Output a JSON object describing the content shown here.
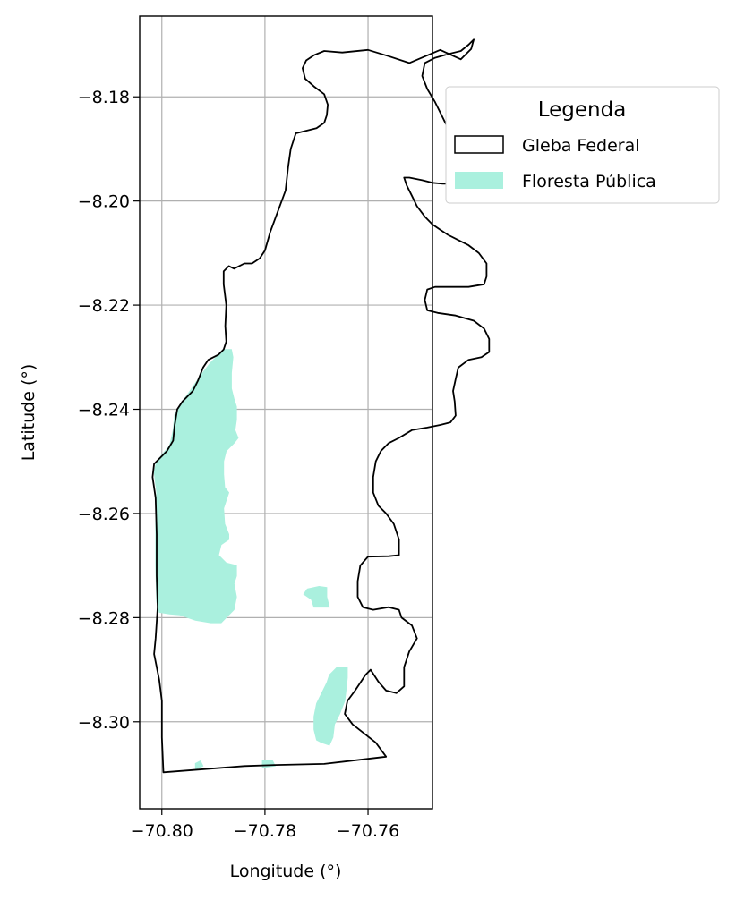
{
  "chart_data": {
    "type": "map",
    "xlabel": "Longitude (°)",
    "ylabel": "Latitude (°)",
    "xlim": [
      -70.8043,
      -70.7475
    ],
    "ylim": [
      -8.3167,
      -8.1645
    ],
    "xticks": [
      -70.8,
      -70.78,
      -70.76
    ],
    "xtick_labels": [
      "−70.80",
      "−70.78",
      "−70.76"
    ],
    "yticks": [
      -8.18,
      -8.2,
      -8.22,
      -8.24,
      -8.26,
      -8.28,
      -8.3
    ],
    "ytick_labels": [
      "−8.18",
      "−8.20",
      "−8.22",
      "−8.24",
      "−8.26",
      "−8.28",
      "−8.30"
    ],
    "grid": true,
    "legend": {
      "title": "Legenda",
      "placement": "outside-upper-right",
      "entries": [
        {
          "label": "Gleba Federal",
          "style": "outline",
          "edgecolor": "#000000",
          "facecolor": "none"
        },
        {
          "label": "Floresta Pública",
          "style": "fill",
          "facecolor": "#aaf0de"
        }
      ]
    },
    "colors": {
      "gleba": "#000000",
      "floresta": "#aaf0de",
      "grid": "#b0b0b0"
    },
    "gleba_federal": [
      [
        -70.7997,
        -8.3097
      ],
      [
        -70.784,
        -8.3085
      ],
      [
        -70.778,
        -8.3083
      ],
      [
        -70.7685,
        -8.3081
      ],
      [
        -70.7565,
        -8.3067
      ],
      [
        -70.7585,
        -8.304
      ],
      [
        -70.763,
        -8.3005
      ],
      [
        -70.7645,
        -8.2985
      ],
      [
        -70.764,
        -8.296
      ],
      [
        -70.7625,
        -8.294
      ],
      [
        -70.7605,
        -8.291
      ],
      [
        -70.7595,
        -8.29
      ],
      [
        -70.758,
        -8.2923
      ],
      [
        -70.7565,
        -8.294
      ],
      [
        -70.7545,
        -8.2945
      ],
      [
        -70.753,
        -8.2932
      ],
      [
        -70.753,
        -8.2895
      ],
      [
        -70.752,
        -8.2865
      ],
      [
        -70.7505,
        -8.284
      ],
      [
        -70.7515,
        -8.2815
      ],
      [
        -70.7535,
        -8.28
      ],
      [
        -70.754,
        -8.2785
      ],
      [
        -70.756,
        -8.278
      ],
      [
        -70.759,
        -8.2785
      ],
      [
        -70.761,
        -8.278
      ],
      [
        -70.762,
        -8.276
      ],
      [
        -70.762,
        -8.273
      ],
      [
        -70.7615,
        -8.27
      ],
      [
        -70.76,
        -8.2683
      ],
      [
        -70.756,
        -8.2682
      ],
      [
        -70.754,
        -8.268
      ],
      [
        -70.754,
        -8.265
      ],
      [
        -70.755,
        -8.262
      ],
      [
        -70.7565,
        -8.26
      ],
      [
        -70.758,
        -8.2585
      ],
      [
        -70.759,
        -8.256
      ],
      [
        -70.759,
        -8.253
      ],
      [
        -70.7585,
        -8.25
      ],
      [
        -70.7575,
        -8.248
      ],
      [
        -70.756,
        -8.2465
      ],
      [
        -70.754,
        -8.2455
      ],
      [
        -70.7515,
        -8.244
      ],
      [
        -70.7485,
        -8.2435
      ],
      [
        -70.746,
        -8.243
      ],
      [
        -70.744,
        -8.2425
      ],
      [
        -70.743,
        -8.2412
      ],
      [
        -70.7432,
        -8.2385
      ],
      [
        -70.7435,
        -8.2365
      ],
      [
        -70.743,
        -8.2342
      ],
      [
        -70.7425,
        -8.232
      ],
      [
        -70.7405,
        -8.2305
      ],
      [
        -70.738,
        -8.23
      ],
      [
        -70.7365,
        -8.229
      ],
      [
        -70.7365,
        -8.2265
      ],
      [
        -70.7375,
        -8.2245
      ],
      [
        -70.7395,
        -8.223
      ],
      [
        -70.743,
        -8.222
      ],
      [
        -70.7465,
        -8.2215
      ],
      [
        -70.7485,
        -8.221
      ],
      [
        -70.749,
        -8.219
      ],
      [
        -70.7485,
        -8.217
      ],
      [
        -70.747,
        -8.2165
      ],
      [
        -70.744,
        -8.2165
      ],
      [
        -70.7405,
        -8.2165
      ],
      [
        -70.7375,
        -8.216
      ],
      [
        -70.737,
        -8.2145
      ],
      [
        -70.737,
        -8.212
      ],
      [
        -70.7385,
        -8.21
      ],
      [
        -70.7405,
        -8.2085
      ],
      [
        -70.7425,
        -8.2075
      ],
      [
        -70.7445,
        -8.2065
      ],
      [
        -70.746,
        -8.2055
      ],
      [
        -70.7475,
        -8.2045
      ],
      [
        -70.749,
        -8.203
      ],
      [
        -70.7505,
        -8.201
      ],
      [
        -70.7515,
        -8.199
      ],
      [
        -70.7525,
        -8.197
      ],
      [
        -70.753,
        -8.1955
      ],
      [
        -70.752,
        -8.1955
      ],
      [
        -70.7495,
        -8.196
      ],
      [
        -70.7475,
        -8.1965
      ],
      [
        -70.7455,
        -8.1967
      ],
      [
        -70.7435,
        -8.1967
      ],
      [
        -70.7415,
        -8.1962
      ],
      [
        -70.74,
        -8.1952
      ],
      [
        -70.7405,
        -8.193
      ],
      [
        -70.742,
        -8.19
      ],
      [
        -70.744,
        -8.187
      ],
      [
        -70.7455,
        -8.184
      ],
      [
        -70.747,
        -8.181
      ],
      [
        -70.7485,
        -8.1785
      ],
      [
        -70.7495,
        -8.176
      ],
      [
        -70.749,
        -8.1735
      ],
      [
        -70.747,
        -8.1725
      ],
      [
        -70.7445,
        -8.1718
      ],
      [
        -70.742,
        -8.1712
      ],
      [
        -70.7405,
        -8.17
      ],
      [
        -70.7395,
        -8.169
      ],
      [
        -70.74,
        -8.1708
      ],
      [
        -70.742,
        -8.1728
      ],
      [
        -70.746,
        -8.171
      ],
      [
        -70.752,
        -8.1735
      ],
      [
        -70.756,
        -8.1722
      ],
      [
        -70.76,
        -8.171
      ],
      [
        -70.765,
        -8.1715
      ],
      [
        -70.7685,
        -8.1712
      ],
      [
        -70.7705,
        -8.172
      ],
      [
        -70.772,
        -8.173
      ],
      [
        -70.7727,
        -8.1745
      ],
      [
        -70.7722,
        -8.1765
      ],
      [
        -70.7705,
        -8.178
      ],
      [
        -70.7685,
        -8.1795
      ],
      [
        -70.7678,
        -8.1815
      ],
      [
        -70.768,
        -8.1835
      ],
      [
        -70.7685,
        -8.185
      ],
      [
        -70.77,
        -8.186
      ],
      [
        -70.774,
        -8.187
      ],
      [
        -70.775,
        -8.19
      ],
      [
        -70.7755,
        -8.1935
      ],
      [
        -70.776,
        -8.198
      ],
      [
        -70.7775,
        -8.202
      ],
      [
        -70.779,
        -8.206
      ],
      [
        -70.78,
        -8.2095
      ],
      [
        -70.781,
        -8.211
      ],
      [
        -70.7825,
        -8.212
      ],
      [
        -70.784,
        -8.212
      ],
      [
        -70.786,
        -8.213
      ],
      [
        -70.787,
        -8.2125
      ],
      [
        -70.788,
        -8.2135
      ],
      [
        -70.788,
        -8.216
      ],
      [
        -70.7875,
        -8.22
      ],
      [
        -70.7877,
        -8.224
      ],
      [
        -70.7875,
        -8.227
      ],
      [
        -70.788,
        -8.2285
      ],
      [
        -70.789,
        -8.2295
      ],
      [
        -70.791,
        -8.2305
      ],
      [
        -70.792,
        -8.232
      ],
      [
        -70.793,
        -8.2345
      ],
      [
        -70.794,
        -8.2365
      ],
      [
        -70.796,
        -8.2385
      ],
      [
        -70.797,
        -8.24
      ],
      [
        -70.7975,
        -8.243
      ],
      [
        -70.7978,
        -8.246
      ],
      [
        -70.799,
        -8.248
      ],
      [
        -70.8005,
        -8.2495
      ],
      [
        -70.8015,
        -8.2505
      ],
      [
        -70.8018,
        -8.253
      ],
      [
        -70.8012,
        -8.257
      ],
      [
        -70.801,
        -8.264
      ],
      [
        -70.801,
        -8.272
      ],
      [
        -70.8008,
        -8.278
      ],
      [
        -70.8012,
        -8.284
      ],
      [
        -70.8015,
        -8.287
      ],
      [
        -70.8005,
        -8.292
      ],
      [
        -70.8,
        -8.296
      ],
      [
        -70.8,
        -8.3
      ],
      [
        -70.8,
        -8.303
      ],
      [
        -70.7997,
        -8.3097
      ]
    ],
    "floresta_publica": [
      [
        [
          -70.788,
          -8.2285
        ],
        [
          -70.7865,
          -8.2285
        ],
        [
          -70.7862,
          -8.23
        ],
        [
          -70.7865,
          -8.233
        ],
        [
          -70.7865,
          -8.236
        ],
        [
          -70.786,
          -8.238
        ],
        [
          -70.7855,
          -8.2395
        ],
        [
          -70.7855,
          -8.242
        ],
        [
          -70.7858,
          -8.244
        ],
        [
          -70.7852,
          -8.2455
        ],
        [
          -70.786,
          -8.2465
        ],
        [
          -70.7875,
          -8.248
        ],
        [
          -70.788,
          -8.25
        ],
        [
          -70.788,
          -8.2525
        ],
        [
          -70.7878,
          -8.255
        ],
        [
          -70.787,
          -8.256
        ],
        [
          -70.7875,
          -8.2575
        ],
        [
          -70.788,
          -8.259
        ],
        [
          -70.7878,
          -8.262
        ],
        [
          -70.787,
          -8.264
        ],
        [
          -70.787,
          -8.265
        ],
        [
          -70.7885,
          -8.266
        ],
        [
          -70.789,
          -8.268
        ],
        [
          -70.7875,
          -8.2695
        ],
        [
          -70.7855,
          -8.27
        ],
        [
          -70.7855,
          -8.272
        ],
        [
          -70.786,
          -8.2735
        ],
        [
          -70.7855,
          -8.276
        ],
        [
          -70.786,
          -8.2785
        ],
        [
          -70.7885,
          -8.281
        ],
        [
          -70.7905,
          -8.281
        ],
        [
          -70.7935,
          -8.2805
        ],
        [
          -70.7965,
          -8.2795
        ],
        [
          -70.7985,
          -8.2793
        ],
        [
          -70.8005,
          -8.279
        ],
        [
          -70.801,
          -8.277
        ],
        [
          -70.8012,
          -8.27
        ],
        [
          -70.8012,
          -8.262
        ],
        [
          -70.801,
          -8.256
        ],
        [
          -70.8015,
          -8.252
        ],
        [
          -70.801,
          -8.25
        ],
        [
          -70.7998,
          -8.2485
        ],
        [
          -70.7985,
          -8.247
        ],
        [
          -70.7978,
          -8.244
        ],
        [
          -70.7975,
          -8.241
        ],
        [
          -70.796,
          -8.2385
        ],
        [
          -70.7942,
          -8.236
        ],
        [
          -70.7925,
          -8.2335
        ],
        [
          -70.7905,
          -8.231
        ],
        [
          -70.789,
          -8.2295
        ]
      ],
      [
        [
          -70.7718,
          -8.2745
        ],
        [
          -70.7695,
          -8.274
        ],
        [
          -70.768,
          -8.2742
        ],
        [
          -70.768,
          -8.276
        ],
        [
          -70.7675,
          -8.278
        ],
        [
          -70.7705,
          -8.278
        ],
        [
          -70.771,
          -8.2765
        ],
        [
          -70.7725,
          -8.2755
        ]
      ],
      [
        [
          -70.764,
          -8.2895
        ],
        [
          -70.766,
          -8.2895
        ],
        [
          -70.7675,
          -8.291
        ],
        [
          -70.768,
          -8.2925
        ],
        [
          -70.769,
          -8.2945
        ],
        [
          -70.77,
          -8.2965
        ],
        [
          -70.7705,
          -8.299
        ],
        [
          -70.7705,
          -8.3015
        ],
        [
          -70.77,
          -8.3035
        ],
        [
          -70.769,
          -8.304
        ],
        [
          -70.7675,
          -8.3045
        ],
        [
          -70.7668,
          -8.303
        ],
        [
          -70.7665,
          -8.3005
        ],
        [
          -70.7655,
          -8.2985
        ],
        [
          -70.7645,
          -8.296
        ],
        [
          -70.7642,
          -8.2935
        ],
        [
          -70.764,
          -8.2915
        ]
      ],
      [
        [
          -70.7935,
          -8.308
        ],
        [
          -70.7925,
          -8.3075
        ],
        [
          -70.792,
          -8.3085
        ],
        [
          -70.7935,
          -8.3092
        ]
      ],
      [
        [
          -70.7805,
          -8.3075
        ],
        [
          -70.7785,
          -8.3075
        ],
        [
          -70.778,
          -8.3085
        ],
        [
          -70.7805,
          -8.3088
        ]
      ]
    ]
  }
}
